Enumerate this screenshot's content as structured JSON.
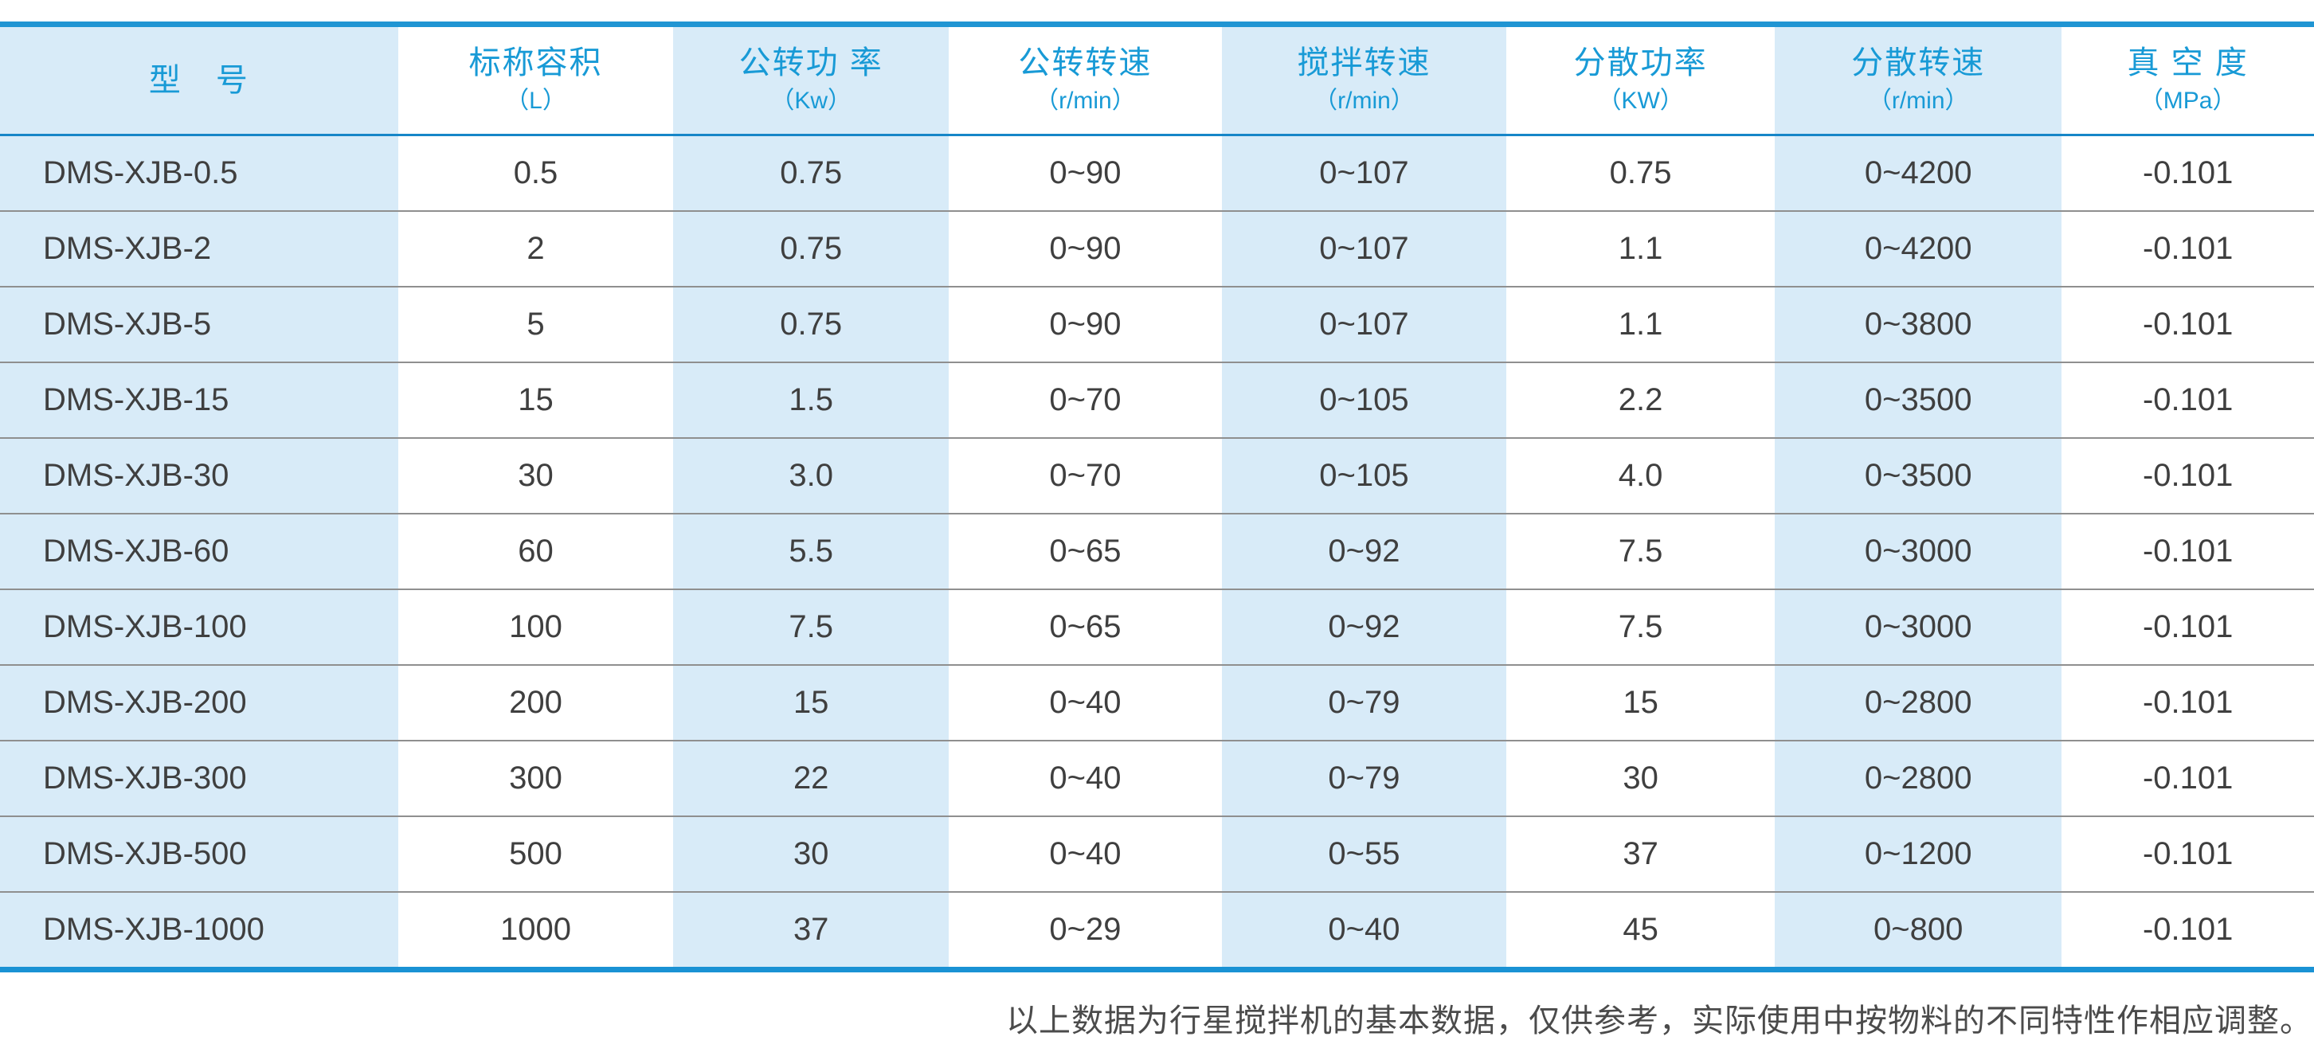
{
  "chart_data": {
    "type": "table",
    "title": "",
    "columns": [
      {
        "label": "型　号",
        "unit": ""
      },
      {
        "label": "标称容积",
        "unit": "（L）"
      },
      {
        "label": "公转功 率",
        "unit": "（Kw）"
      },
      {
        "label": "公转转速",
        "unit": "（r/min）"
      },
      {
        "label": "搅拌转速",
        "unit": "（r/min）"
      },
      {
        "label": "分散功率",
        "unit": "（KW）"
      },
      {
        "label": "分散转速",
        "unit": "（r/min）"
      },
      {
        "label": "真 空 度",
        "unit": "（MPa）"
      }
    ],
    "rows": [
      [
        "DMS-XJB-0.5",
        "0.5",
        "0.75",
        "0~90",
        "0~107",
        "0.75",
        "0~4200",
        "-0.101"
      ],
      [
        "DMS-XJB-2",
        "2",
        "0.75",
        "0~90",
        "0~107",
        "1.1",
        "0~4200",
        "-0.101"
      ],
      [
        "DMS-XJB-5",
        "5",
        "0.75",
        "0~90",
        "0~107",
        "1.1",
        "0~3800",
        "-0.101"
      ],
      [
        "DMS-XJB-15",
        "15",
        "1.5",
        "0~70",
        "0~105",
        "2.2",
        "0~3500",
        "-0.101"
      ],
      [
        "DMS-XJB-30",
        "30",
        "3.0",
        "0~70",
        "0~105",
        "4.0",
        "0~3500",
        "-0.101"
      ],
      [
        "DMS-XJB-60",
        "60",
        "5.5",
        "0~65",
        "0~92",
        "7.5",
        "0~3000",
        "-0.101"
      ],
      [
        "DMS-XJB-100",
        "100",
        "7.5",
        "0~65",
        "0~92",
        "7.5",
        "0~3000",
        "-0.101"
      ],
      [
        "DMS-XJB-200",
        "200",
        "15",
        "0~40",
        "0~79",
        "15",
        "0~2800",
        "-0.101"
      ],
      [
        "DMS-XJB-300",
        "300",
        "22",
        "0~40",
        "0~79",
        "30",
        "0~2800",
        "-0.101"
      ],
      [
        "DMS-XJB-500",
        "500",
        "30",
        "0~40",
        "0~55",
        "37",
        "0~1200",
        "-0.101"
      ],
      [
        "DMS-XJB-1000",
        "1000",
        "37",
        "0~29",
        "0~40",
        "45",
        "0~800",
        "-0.101"
      ]
    ],
    "layout_hints": {
      "column_shading": "odd columns light blue, even columns white",
      "grid": "horizontal separators only, no vertical lines"
    }
  },
  "footnote": {
    "text": "以上数据为行星搅拌机的基本数据，仅供参考，实际使用中按物料的不同特性作相应调整。"
  },
  "colors": {
    "cell_fill_blue": "#d8ebf8",
    "header_text_blue": "#189ad6",
    "top_border_blue": "#2095d3",
    "header_rule_blue": "#1686c8",
    "bottom_border_blue": "#1a92d4",
    "row_separator_gray": "#8f8f8f",
    "body_text": "#3f3f3f",
    "footnote_text": "#4b4b4b"
  }
}
